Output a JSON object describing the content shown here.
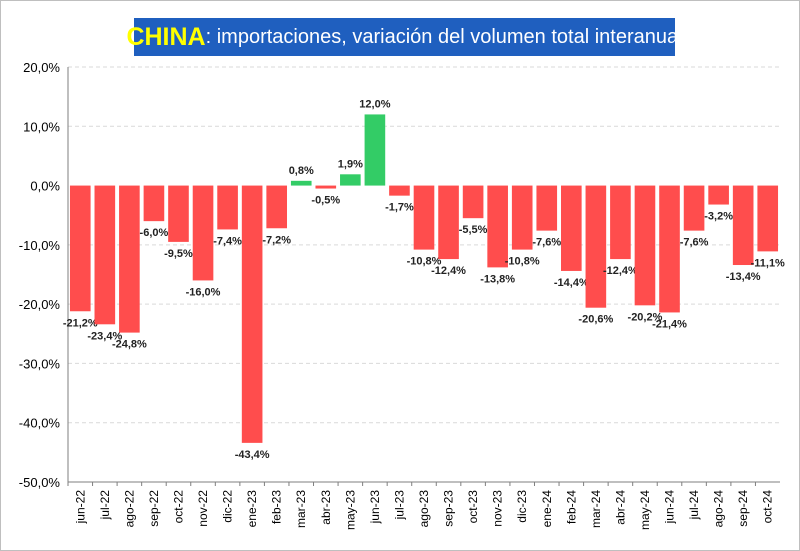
{
  "title": {
    "country": "CHINA",
    "text": ": importaciones, variación del volumen total interanual"
  },
  "colors": {
    "positive": "#33cc66",
    "negative": "#ff4d4d",
    "title_bg": "#1f5fbf",
    "title_strong": "#ffff00",
    "title_text": "#ffffff",
    "grid": "#d9d9d9"
  },
  "chart_data": {
    "type": "bar",
    "title": "CHINA: importaciones, variación del volumen total interanual",
    "xlabel": "",
    "ylabel": "",
    "ylim": [
      -50,
      20
    ],
    "yticks": [
      20,
      10,
      0,
      -10,
      -20,
      -30,
      -40,
      -50
    ],
    "ytick_labels": [
      "20,0%",
      "10,0%",
      "0,0%",
      "-10,0%",
      "-20,0%",
      "-30,0%",
      "-40,0%",
      "-50,0%"
    ],
    "grid": true,
    "categories": [
      "jun-22",
      "jul-22",
      "ago-22",
      "sep-22",
      "oct-22",
      "nov-22",
      "dic-22",
      "ene-23",
      "feb-23",
      "mar-23",
      "abr-23",
      "may-23",
      "jun-23",
      "jul-23",
      "ago-23",
      "sep-23",
      "oct-23",
      "nov-23",
      "dic-23",
      "ene-24",
      "feb-24",
      "mar-24",
      "abr-24",
      "may-24",
      "jun-24",
      "jul-24",
      "ago-24",
      "sep-24",
      "oct-24"
    ],
    "values": [
      -21.2,
      -23.4,
      -24.8,
      -6.0,
      -9.5,
      -16.0,
      -7.4,
      -43.4,
      -7.2,
      0.8,
      -0.5,
      1.9,
      12.0,
      -1.7,
      -10.8,
      -12.4,
      -5.5,
      -13.8,
      -10.8,
      -7.6,
      -14.4,
      -20.6,
      -12.4,
      -20.2,
      -21.4,
      -7.6,
      -3.2,
      -13.4,
      -11.1
    ],
    "labels": [
      "-21,2%",
      "-23,4%",
      "-24,8%",
      "-6,0%",
      "-9,5%",
      "-16,0%",
      "-7,4%",
      "-43,4%",
      "-7,2%",
      "0,8%",
      "-0,5%",
      "1,9%",
      "12,0%",
      "-1,7%",
      "-10,8%",
      "-12,4%",
      "-5,5%",
      "-13,8%",
      "-10,8%",
      "-7,6%",
      "-14,4%",
      "-20,6%",
      "-12,4%",
      "-20,2%",
      "-21,4%",
      "-7,6%",
      "-3,2%",
      "-13,4%",
      "-11,1%"
    ]
  }
}
